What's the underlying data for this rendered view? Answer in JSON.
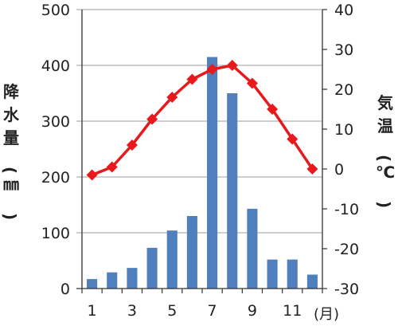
{
  "chart_data": {
    "type": "bar+line",
    "x": [
      1,
      2,
      3,
      4,
      5,
      6,
      7,
      8,
      9,
      10,
      11,
      12
    ],
    "x_tick_labels": [
      "1",
      "3",
      "5",
      "7",
      "9",
      "11"
    ],
    "x_unit": "(月)",
    "series": [
      {
        "type": "bar",
        "axis": "left",
        "color": "#4f7fbd",
        "values": [
          17,
          29,
          37,
          73,
          104,
          130,
          415,
          350,
          143,
          52,
          52,
          25
        ]
      },
      {
        "type": "line",
        "axis": "right",
        "color": "#e8191c",
        "marker": "diamond",
        "values": [
          -1.5,
          0.5,
          6,
          12.5,
          18,
          22.5,
          25,
          26,
          21.5,
          15,
          7.5,
          0
        ]
      }
    ],
    "ylabel_left": "降水量(㎜)",
    "ylabel_right": "気温(℃)",
    "ylim_left": [
      0,
      500
    ],
    "ylim_right": [
      -30,
      40
    ],
    "yticks_left": [
      0,
      100,
      200,
      300,
      400,
      500
    ],
    "yticks_right": [
      -30,
      -20,
      -10,
      0,
      10,
      20,
      30,
      40
    ],
    "grid": true,
    "colors": {
      "bar": "#4f7fbd",
      "line": "#e8191c",
      "grid": "#b0b0b0",
      "axis": "#333333"
    }
  }
}
